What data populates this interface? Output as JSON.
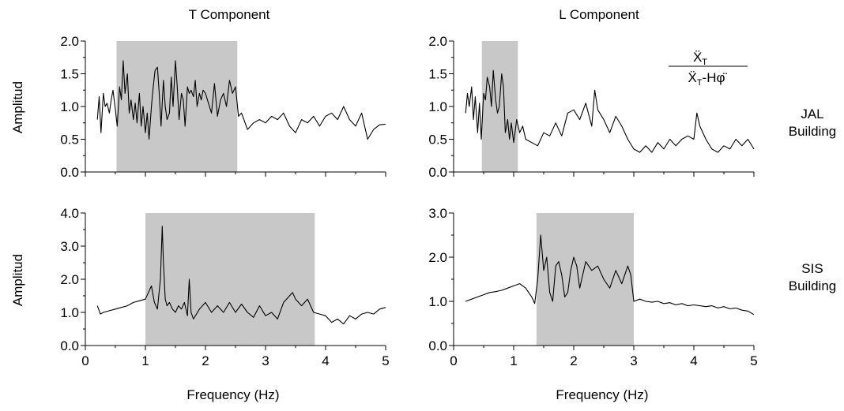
{
  "figure": {
    "col_titles": [
      "T  Component",
      "L  Component"
    ],
    "row_labels": [
      [
        "JAL",
        "Building"
      ],
      [
        "SIS",
        "Building"
      ]
    ],
    "ylabel": "Amplitud",
    "xlabel": "Frequency (Hz)",
    "formula": {
      "numerator": "Ẍ",
      "numerator_sub": "T",
      "denominator_a": "Ẍ",
      "denominator_sub": "T",
      "denominator_b": "-Hφ̈"
    }
  },
  "chart_data": [
    {
      "type": "line",
      "panel": "JAL T Component",
      "xlim": [
        0,
        5
      ],
      "ylim": [
        0,
        2
      ],
      "xticks": [
        0,
        1,
        2,
        3,
        4,
        5
      ],
      "yticks": [
        "0.0",
        "0.5",
        "1.0",
        "1.5",
        "2.0"
      ],
      "shaded_band": [
        0.52,
        2.53
      ],
      "x": [
        0.2,
        0.23,
        0.26,
        0.3,
        0.33,
        0.36,
        0.4,
        0.43,
        0.46,
        0.5,
        0.53,
        0.57,
        0.6,
        0.63,
        0.66,
        0.7,
        0.73,
        0.76,
        0.8,
        0.83,
        0.86,
        0.9,
        0.93,
        0.96,
        1.0,
        1.03,
        1.06,
        1.1,
        1.13,
        1.16,
        1.2,
        1.23,
        1.26,
        1.3,
        1.33,
        1.36,
        1.4,
        1.43,
        1.46,
        1.5,
        1.53,
        1.56,
        1.6,
        1.63,
        1.66,
        1.7,
        1.73,
        1.76,
        1.8,
        1.83,
        1.86,
        1.9,
        1.93,
        1.96,
        2.0,
        2.05,
        2.1,
        2.15,
        2.2,
        2.25,
        2.3,
        2.35,
        2.4,
        2.45,
        2.5,
        2.55,
        2.6,
        2.7,
        2.8,
        2.9,
        3.0,
        3.1,
        3.2,
        3.3,
        3.4,
        3.5,
        3.6,
        3.7,
        3.8,
        3.9,
        4.0,
        4.1,
        4.2,
        4.3,
        4.4,
        4.5,
        4.6,
        4.7,
        4.8,
        4.9,
        5.0
      ],
      "y": [
        0.8,
        1.15,
        0.6,
        1.2,
        1.0,
        1.05,
        0.9,
        1.1,
        1.25,
        0.95,
        0.7,
        1.3,
        1.1,
        1.7,
        1.2,
        1.5,
        0.9,
        1.1,
        0.8,
        1.05,
        0.75,
        1.2,
        0.7,
        1.0,
        0.6,
        0.9,
        0.5,
        1.0,
        1.3,
        1.55,
        1.6,
        1.2,
        0.7,
        1.4,
        1.0,
        0.8,
        0.9,
        1.45,
        1.0,
        1.7,
        1.3,
        0.8,
        1.2,
        1.1,
        0.7,
        1.3,
        1.2,
        1.25,
        1.15,
        1.4,
        1.0,
        1.2,
        1.1,
        1.25,
        1.2,
        1.05,
        0.9,
        1.35,
        0.85,
        1.1,
        1.2,
        1.0,
        1.4,
        1.2,
        1.3,
        0.85,
        0.9,
        0.65,
        0.75,
        0.8,
        0.75,
        0.85,
        0.8,
        0.9,
        0.7,
        0.6,
        0.8,
        0.75,
        0.85,
        0.7,
        0.85,
        0.9,
        0.8,
        1.0,
        0.8,
        0.7,
        0.9,
        0.5,
        0.65,
        0.72,
        0.73
      ]
    },
    {
      "type": "line",
      "panel": "JAL L Component",
      "xlim": [
        0,
        5
      ],
      "ylim": [
        0,
        2
      ],
      "xticks": [
        0,
        1,
        2,
        3,
        4,
        5
      ],
      "yticks": [
        "0.0",
        "0.5",
        "1.0",
        "1.5",
        "2.0"
      ],
      "shaded_band": [
        0.47,
        1.07
      ],
      "x": [
        0.2,
        0.23,
        0.26,
        0.3,
        0.33,
        0.36,
        0.4,
        0.43,
        0.46,
        0.5,
        0.53,
        0.56,
        0.6,
        0.63,
        0.66,
        0.7,
        0.73,
        0.76,
        0.8,
        0.83,
        0.86,
        0.9,
        0.93,
        0.96,
        1.0,
        1.05,
        1.1,
        1.15,
        1.2,
        1.3,
        1.4,
        1.5,
        1.6,
        1.7,
        1.8,
        1.9,
        2.0,
        2.1,
        2.2,
        2.3,
        2.35,
        2.4,
        2.5,
        2.6,
        2.7,
        2.8,
        2.9,
        3.0,
        3.1,
        3.2,
        3.3,
        3.4,
        3.5,
        3.6,
        3.7,
        3.8,
        3.9,
        4.0,
        4.05,
        4.1,
        4.2,
        4.3,
        4.4,
        4.5,
        4.6,
        4.7,
        4.8,
        4.9,
        5.0
      ],
      "y": [
        0.9,
        1.2,
        1.0,
        1.3,
        0.8,
        1.15,
        0.6,
        1.05,
        0.5,
        1.2,
        1.1,
        1.45,
        1.3,
        1.0,
        1.55,
        1.1,
        0.9,
        1.0,
        1.5,
        1.3,
        0.6,
        0.8,
        0.5,
        0.75,
        0.45,
        0.8,
        0.6,
        0.7,
        0.5,
        0.45,
        0.4,
        0.6,
        0.55,
        0.75,
        0.55,
        0.9,
        0.95,
        0.8,
        1.05,
        0.7,
        1.25,
        0.95,
        0.8,
        0.6,
        0.85,
        0.7,
        0.5,
        0.35,
        0.3,
        0.4,
        0.3,
        0.45,
        0.35,
        0.5,
        0.4,
        0.5,
        0.55,
        0.5,
        0.9,
        0.7,
        0.5,
        0.35,
        0.3,
        0.4,
        0.35,
        0.5,
        0.4,
        0.5,
        0.35
      ]
    },
    {
      "type": "line",
      "panel": "SIS T Component",
      "xlim": [
        0,
        5
      ],
      "ylim": [
        0,
        4
      ],
      "xticks": [
        0,
        1,
        2,
        3,
        4,
        5
      ],
      "yticks": [
        "0.0",
        "1.0",
        "2.0",
        "3.0",
        "4.0"
      ],
      "shaded_band": [
        1.0,
        3.82
      ],
      "x": [
        0.2,
        0.25,
        0.3,
        0.4,
        0.5,
        0.6,
        0.7,
        0.8,
        0.9,
        1.0,
        1.05,
        1.1,
        1.15,
        1.2,
        1.25,
        1.28,
        1.3,
        1.33,
        1.36,
        1.4,
        1.45,
        1.5,
        1.55,
        1.6,
        1.65,
        1.7,
        1.73,
        1.76,
        1.8,
        1.9,
        2.0,
        2.1,
        2.2,
        2.3,
        2.4,
        2.5,
        2.6,
        2.7,
        2.8,
        2.9,
        3.0,
        3.1,
        3.2,
        3.3,
        3.4,
        3.45,
        3.5,
        3.6,
        3.7,
        3.8,
        3.9,
        4.0,
        4.1,
        4.2,
        4.3,
        4.4,
        4.5,
        4.6,
        4.7,
        4.8,
        4.9,
        5.0
      ],
      "y": [
        1.2,
        0.95,
        1.0,
        1.05,
        1.1,
        1.15,
        1.2,
        1.3,
        1.35,
        1.4,
        1.6,
        1.8,
        1.3,
        1.1,
        2.0,
        3.6,
        2.5,
        1.4,
        1.2,
        1.3,
        1.1,
        1.0,
        1.2,
        1.1,
        1.3,
        0.9,
        2.0,
        1.0,
        0.8,
        1.1,
        1.3,
        1.0,
        1.2,
        1.0,
        1.3,
        1.0,
        1.25,
        1.0,
        0.85,
        1.2,
        0.9,
        1.0,
        0.8,
        1.3,
        1.5,
        1.6,
        1.4,
        1.2,
        1.4,
        1.0,
        0.95,
        0.9,
        0.7,
        0.8,
        0.65,
        0.9,
        0.8,
        0.95,
        1.0,
        0.95,
        1.1,
        1.15
      ]
    },
    {
      "type": "line",
      "panel": "SIS L Component",
      "xlim": [
        0,
        5
      ],
      "ylim": [
        0,
        3
      ],
      "xticks": [
        0,
        1,
        2,
        3,
        4,
        5
      ],
      "yticks": [
        "0.0",
        "1.0",
        "2.0",
        "3.0"
      ],
      "shaded_band": [
        1.38,
        3.0
      ],
      "x": [
        0.2,
        0.3,
        0.4,
        0.5,
        0.6,
        0.7,
        0.8,
        0.9,
        1.0,
        1.1,
        1.2,
        1.3,
        1.35,
        1.4,
        1.45,
        1.5,
        1.55,
        1.6,
        1.65,
        1.7,
        1.75,
        1.8,
        1.85,
        1.9,
        1.95,
        2.0,
        2.05,
        2.1,
        2.15,
        2.2,
        2.3,
        2.4,
        2.5,
        2.6,
        2.7,
        2.8,
        2.9,
        2.95,
        3.0,
        3.1,
        3.2,
        3.3,
        3.4,
        3.5,
        3.6,
        3.7,
        3.8,
        3.9,
        4.0,
        4.1,
        4.2,
        4.3,
        4.4,
        4.5,
        4.6,
        4.7,
        4.8,
        4.9,
        5.0
      ],
      "y": [
        1.0,
        1.05,
        1.1,
        1.15,
        1.2,
        1.22,
        1.25,
        1.3,
        1.35,
        1.4,
        1.3,
        1.1,
        0.95,
        1.5,
        2.5,
        1.7,
        2.0,
        1.2,
        1.0,
        1.8,
        1.9,
        1.6,
        1.1,
        1.2,
        1.7,
        2.0,
        1.8,
        1.3,
        1.6,
        1.9,
        1.7,
        1.8,
        1.5,
        1.3,
        1.7,
        1.4,
        1.8,
        1.6,
        1.0,
        1.05,
        1.0,
        0.98,
        1.0,
        0.95,
        0.97,
        0.92,
        0.95,
        0.9,
        0.92,
        0.9,
        0.88,
        0.9,
        0.85,
        0.88,
        0.83,
        0.85,
        0.8,
        0.78,
        0.7
      ]
    }
  ]
}
